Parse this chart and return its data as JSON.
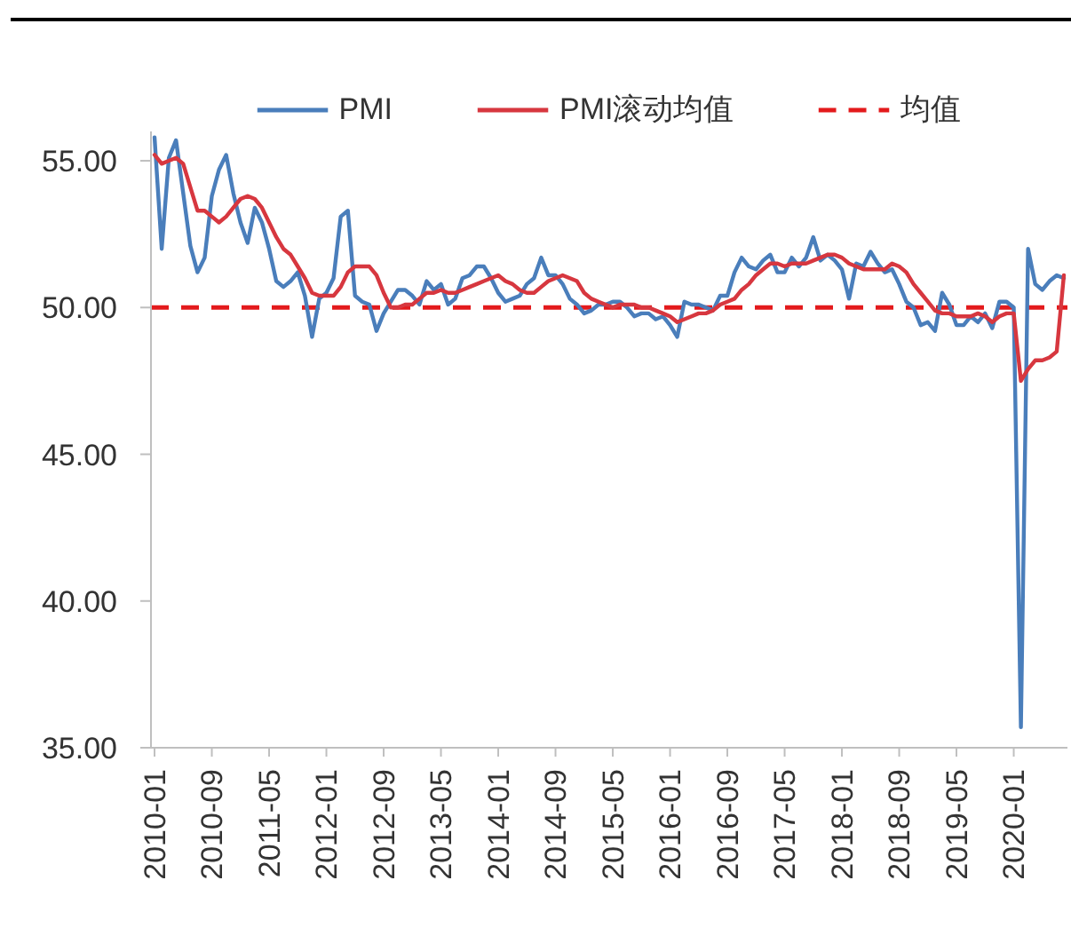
{
  "chart_data": {
    "type": "line",
    "categories": [
      "2010-01",
      null,
      null,
      null,
      null,
      null,
      null,
      null,
      "2010-09",
      null,
      null,
      null,
      null,
      null,
      null,
      null,
      "2011-05",
      null,
      null,
      null,
      null,
      null,
      null,
      null,
      "2012-01",
      null,
      null,
      null,
      null,
      null,
      null,
      null,
      "2012-09",
      null,
      null,
      null,
      null,
      null,
      null,
      null,
      "2013-05",
      null,
      null,
      null,
      null,
      null,
      null,
      null,
      "2014-01",
      null,
      null,
      null,
      null,
      null,
      null,
      null,
      "2014-09",
      null,
      null,
      null,
      null,
      null,
      null,
      null,
      "2015-05",
      null,
      null,
      null,
      null,
      null,
      null,
      null,
      "2016-01",
      null,
      null,
      null,
      null,
      null,
      null,
      null,
      "2016-09",
      null,
      null,
      null,
      null,
      null,
      null,
      null,
      "2017-05",
      null,
      null,
      null,
      null,
      null,
      null,
      null,
      "2018-01",
      null,
      null,
      null,
      null,
      null,
      null,
      null,
      "2018-09",
      null,
      null,
      null,
      null,
      null,
      null,
      null,
      "2019-05",
      null,
      null,
      null,
      null,
      null,
      null,
      null,
      "2020-01",
      null,
      null,
      null,
      null,
      null,
      null,
      null
    ],
    "series": [
      {
        "name": "PMI",
        "color": "#4a7ebb",
        "values": [
          55.8,
          52.0,
          55.1,
          55.7,
          53.9,
          52.1,
          51.2,
          51.7,
          53.8,
          54.7,
          55.2,
          53.9,
          52.9,
          52.2,
          53.4,
          52.9,
          52.0,
          50.9,
          50.7,
          50.9,
          51.2,
          50.4,
          49.0,
          50.3,
          50.5,
          51.0,
          53.1,
          53.3,
          50.4,
          50.2,
          50.1,
          49.2,
          49.8,
          50.2,
          50.6,
          50.6,
          50.4,
          50.1,
          50.9,
          50.6,
          50.8,
          50.1,
          50.3,
          51.0,
          51.1,
          51.4,
          51.4,
          51.0,
          50.5,
          50.2,
          50.3,
          50.4,
          50.8,
          51.0,
          51.7,
          51.1,
          51.1,
          50.8,
          50.3,
          50.1,
          49.8,
          49.9,
          50.1,
          50.1,
          50.2,
          50.2,
          50.0,
          49.7,
          49.8,
          49.8,
          49.6,
          49.7,
          49.4,
          49.0,
          50.2,
          50.1,
          50.1,
          50.0,
          49.9,
          50.4,
          50.4,
          51.2,
          51.7,
          51.4,
          51.3,
          51.6,
          51.8,
          51.2,
          51.2,
          51.7,
          51.4,
          51.7,
          52.4,
          51.6,
          51.8,
          51.6,
          51.3,
          50.3,
          51.5,
          51.4,
          51.9,
          51.5,
          51.2,
          51.3,
          50.8,
          50.2,
          50.0,
          49.4,
          49.5,
          49.2,
          50.5,
          50.1,
          49.4,
          49.4,
          49.7,
          49.5,
          49.8,
          49.3,
          50.2,
          50.2,
          50.0,
          35.7,
          52.0,
          50.8,
          50.6,
          50.9,
          51.1,
          51.0
        ]
      },
      {
        "name": "PMI滚动均值",
        "color": "#d7373f",
        "values": [
          55.2,
          54.9,
          55.0,
          55.1,
          54.9,
          54.1,
          53.3,
          53.3,
          53.1,
          52.9,
          53.1,
          53.4,
          53.7,
          53.8,
          53.7,
          53.4,
          52.9,
          52.4,
          52.0,
          51.8,
          51.4,
          51.0,
          50.5,
          50.4,
          50.4,
          50.4,
          50.7,
          51.2,
          51.4,
          51.4,
          51.4,
          51.1,
          50.5,
          50.0,
          50.0,
          50.1,
          50.1,
          50.3,
          50.5,
          50.5,
          50.6,
          50.5,
          50.5,
          50.6,
          50.7,
          50.8,
          50.9,
          51.0,
          51.1,
          50.9,
          50.8,
          50.6,
          50.5,
          50.5,
          50.7,
          50.9,
          51.0,
          51.1,
          51.0,
          50.9,
          50.5,
          50.3,
          50.2,
          50.1,
          50.0,
          50.1,
          50.1,
          50.1,
          50.0,
          50.0,
          49.9,
          49.8,
          49.7,
          49.5,
          49.6,
          49.7,
          49.8,
          49.8,
          49.9,
          50.1,
          50.2,
          50.3,
          50.6,
          50.8,
          51.1,
          51.3,
          51.5,
          51.5,
          51.4,
          51.5,
          51.5,
          51.5,
          51.6,
          51.7,
          51.8,
          51.8,
          51.7,
          51.5,
          51.4,
          51.3,
          51.3,
          51.3,
          51.3,
          51.5,
          51.4,
          51.2,
          50.8,
          50.5,
          50.2,
          49.9,
          49.8,
          49.8,
          49.7,
          49.7,
          49.7,
          49.8,
          49.7,
          49.5,
          49.7,
          49.8,
          49.8,
          47.5,
          47.9,
          48.2,
          48.2,
          48.3,
          48.5,
          51.1
        ]
      }
    ],
    "ylim": [
      35,
      56
    ],
    "yticks": [
      {
        "value": 35,
        "label": "35.00"
      },
      {
        "value": 40,
        "label": "40.00"
      },
      {
        "value": 45,
        "label": "45.00"
      },
      {
        "value": 50,
        "label": "50.00"
      },
      {
        "value": 55,
        "label": "55.00"
      }
    ],
    "ref_lines": [
      {
        "axis": "y",
        "value": 50,
        "label": "均值",
        "color": "#e31a1c",
        "line_style": "dashed"
      }
    ],
    "legend": "top"
  }
}
